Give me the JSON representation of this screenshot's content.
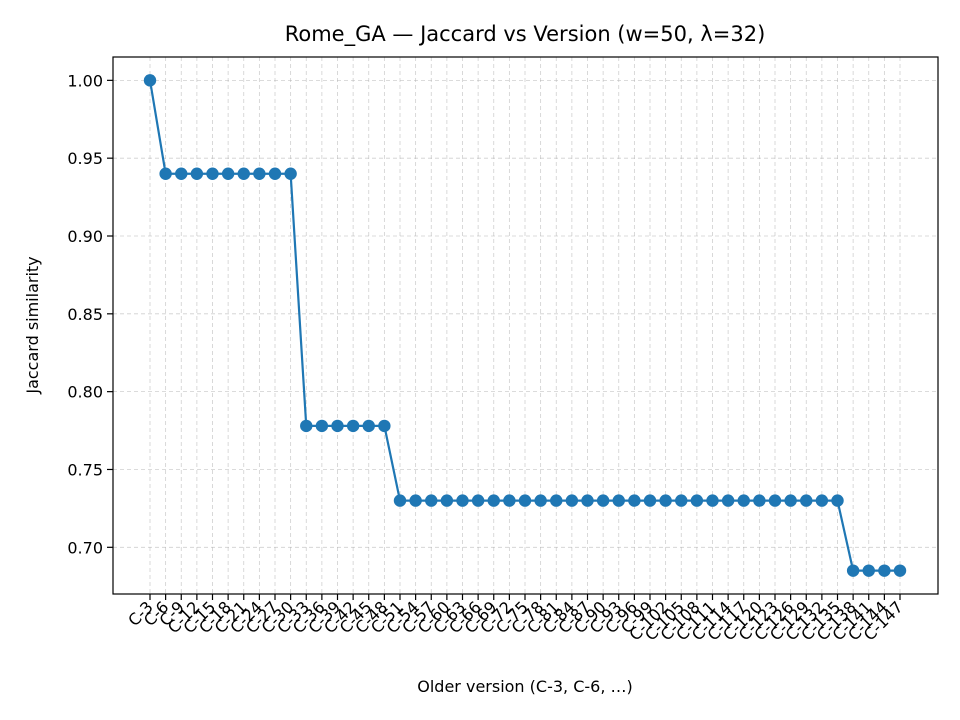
{
  "chart_data": {
    "type": "line",
    "title": "Rome_GA — Jaccard vs Version (w=50, λ=32)",
    "xlabel": "Older version (C-3, C-6, …)",
    "ylabel": "Jaccard similarity",
    "ylim": [
      0.67,
      1.015
    ],
    "yticks": [
      "0.70",
      "0.75",
      "0.80",
      "0.85",
      "0.90",
      "0.95",
      "1.00"
    ],
    "grid": true,
    "color": "#1f77b4",
    "categories": [
      "C-3",
      "C-6",
      "C-9",
      "C-12",
      "C-15",
      "C-18",
      "C-21",
      "C-24",
      "C-27",
      "C-30",
      "C-33",
      "C-36",
      "C-39",
      "C-42",
      "C-45",
      "C-48",
      "C-51",
      "C-54",
      "C-57",
      "C-60",
      "C-63",
      "C-66",
      "C-69",
      "C-72",
      "C-75",
      "C-78",
      "C-81",
      "C-84",
      "C-87",
      "C-90",
      "C-93",
      "C-96",
      "C-99",
      "C-102",
      "C-105",
      "C-108",
      "C-111",
      "C-114",
      "C-117",
      "C-120",
      "C-123",
      "C-126",
      "C-129",
      "C-132",
      "C-135",
      "C-138",
      "C-141",
      "C-144",
      "C-147"
    ],
    "values": [
      1.0,
      0.94,
      0.94,
      0.94,
      0.94,
      0.94,
      0.94,
      0.94,
      0.94,
      0.94,
      0.778,
      0.778,
      0.778,
      0.778,
      0.778,
      0.778,
      0.73,
      0.73,
      0.73,
      0.73,
      0.73,
      0.73,
      0.73,
      0.73,
      0.73,
      0.73,
      0.73,
      0.73,
      0.73,
      0.73,
      0.73,
      0.73,
      0.73,
      0.73,
      0.73,
      0.73,
      0.73,
      0.73,
      0.73,
      0.73,
      0.73,
      0.73,
      0.73,
      0.73,
      0.73,
      0.685,
      0.685,
      0.685,
      0.685
    ]
  }
}
